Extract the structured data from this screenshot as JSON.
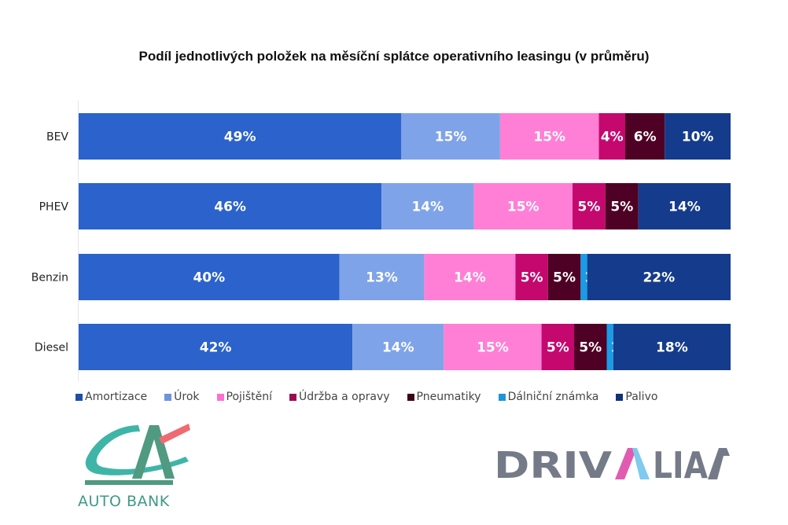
{
  "chart_data": {
    "type": "bar",
    "orientation": "horizontal",
    "stacked": true,
    "title": "Podíl jednotlivých položek na měsíční splátce operativního leasingu (v průměru)",
    "xlabel": "",
    "ylabel": "",
    "categories": [
      "BEV",
      "PHEV",
      "Benzin",
      "Diesel"
    ],
    "series": [
      {
        "name": "Amortizace",
        "color": "#2b62cc",
        "values": [
          49,
          46,
          40,
          42
        ],
        "labels": [
          "49%",
          "46%",
          "40%",
          "42%"
        ]
      },
      {
        "name": "Úrok",
        "color": "#7fa3e8",
        "values": [
          15,
          14,
          13,
          14
        ],
        "labels": [
          "15%",
          "14%",
          "13%",
          "14%"
        ]
      },
      {
        "name": "Pojištění",
        "color": "#ff7fd6",
        "values": [
          15,
          15,
          14,
          15
        ],
        "labels": [
          "15%",
          "15%",
          "14%",
          "15%"
        ]
      },
      {
        "name": "Údržba a opravy",
        "color": "#c4086e",
        "values": [
          4,
          5,
          5,
          5
        ],
        "labels": [
          "4%",
          "5%",
          "5%",
          "5%"
        ]
      },
      {
        "name": "Pneumatiky",
        "color": "#4e0124",
        "values": [
          6,
          5,
          5,
          5
        ],
        "labels": [
          "6%",
          "5%",
          "5%",
          "5%"
        ]
      },
      {
        "name": "Dálniční známka",
        "color": "#1a9be6",
        "values": [
          0,
          0,
          1,
          1
        ],
        "labels": [
          "",
          "",
          "1%",
          "1%"
        ]
      },
      {
        "name": "Palivo",
        "color": "#153b8c",
        "values": [
          10,
          14,
          22,
          18
        ],
        "labels": [
          "10%",
          "14%",
          "22%",
          "18%"
        ]
      }
    ],
    "xlim": [
      0,
      100
    ],
    "grid": false,
    "legend_position": "bottom"
  },
  "legend_swatch_colors": [
    "#1f4ea8",
    "#6e94dc",
    "#ff6fcf",
    "#9c0a52",
    "#3d0219",
    "#1d94dc",
    "#12307a"
  ],
  "logos": {
    "left": {
      "text": "AUTO BANK",
      "colors": {
        "teal": "#3fb5a8",
        "green": "#4f9a80",
        "red": "#ef6b72"
      }
    },
    "right": {
      "text_parts": [
        "DRIV",
        "A",
        "LIA"
      ],
      "colors": {
        "gray": "#757a88",
        "pink": "#e15cb0",
        "blue": "#7fcaee"
      }
    }
  }
}
